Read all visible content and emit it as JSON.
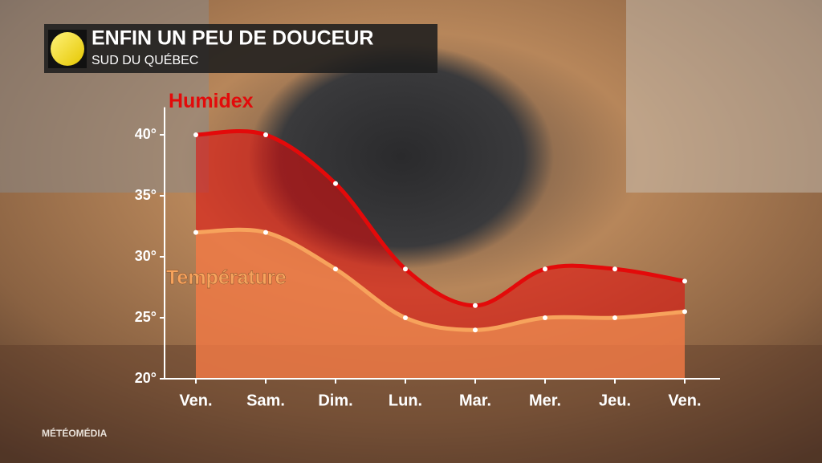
{
  "chart_data": {
    "type": "line",
    "title": "ENFIN UN PEU DE DOUCEUR",
    "subtitle": "SUD DU QUÉBEC",
    "brand": "MÉTÉOMÉDIA",
    "categories": [
      "Ven.",
      "Sam.",
      "Dim.",
      "Lun.",
      "Mar.",
      "Mer.",
      "Jeu.",
      "Ven."
    ],
    "series": [
      {
        "name": "Humidex",
        "color": "#e30a0a",
        "values": [
          40,
          40,
          36,
          29,
          26,
          29,
          29,
          28
        ]
      },
      {
        "name": "Température",
        "color": "#f7a35c",
        "values": [
          32,
          32,
          29,
          25,
          24,
          25,
          25,
          25.5
        ]
      }
    ],
    "ylim": [
      20,
      42
    ],
    "yticks": [
      {
        "value": 20,
        "label": "20°"
      },
      {
        "value": 25,
        "label": "25°"
      },
      {
        "value": 30,
        "label": "30°"
      },
      {
        "value": 35,
        "label": "35°"
      },
      {
        "value": 40,
        "label": "40°"
      }
    ]
  }
}
